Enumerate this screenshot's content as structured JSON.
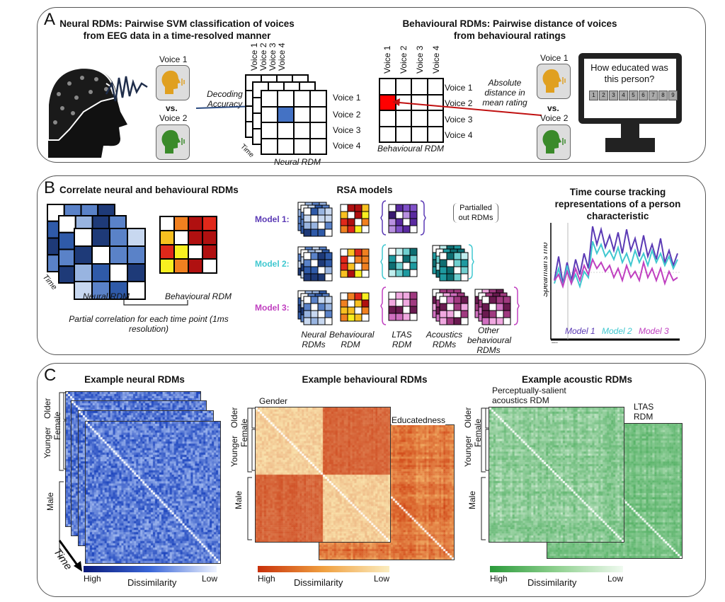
{
  "panelA": {
    "letter": "A",
    "neural_title": [
      "Neural RDMs: Pairwise SVM classification of voices",
      "from EEG data in a time-resolved manner"
    ],
    "behav_title": [
      "Behavioural RDMs: Pairwise distance of voices",
      "from behavioural ratings"
    ],
    "voice1": "Voice 1",
    "voice2": "Voice 2",
    "vs": "vs.",
    "decoding": "Decoding Accuracy",
    "voices": [
      "Voice 1",
      "Voice 2",
      "Voice 3",
      "Voice 4"
    ],
    "time": "Time",
    "neural_rdm": "Neural RDM",
    "behav_rdm": "Behavioural RDM",
    "absolute": "Absolute distance in mean rating",
    "question": "How educated was this person?",
    "scale": [
      "1",
      "2",
      "3",
      "4",
      "5",
      "6",
      "7",
      "8",
      "9"
    ],
    "colors": {
      "neural_cell": "#4472c4",
      "behav_cell": "#ff0000",
      "voice1_icon": "#e0a020",
      "voice2_icon": "#3a8a2a"
    }
  },
  "panelB": {
    "letter": "B",
    "title": "Correlate neural and behavioural RDMs",
    "neural_rdm": "Neural RDM",
    "behav_rdm": "Behavioural RDM",
    "time": "Time",
    "partial": "Partial correlation for each time point (1ms resolution)",
    "rsa_title": "RSA models",
    "models": [
      {
        "label": "Model 1:",
        "color": "#5b3ab5"
      },
      {
        "label": "Model 2:",
        "color": "#40c8d0"
      },
      {
        "label": "Model 3:",
        "color": "#c040c0"
      }
    ],
    "partialled": "Partialled out RDMs",
    "columns": [
      "Neural RDMs",
      "Behavioural RDM",
      "LTAS RDM",
      "Acoustics RDMs",
      "Other behavioural RDMs"
    ],
    "timecourse_title": "Time course tracking representations of a person characteristic",
    "ylabel": "Spearman's rho",
    "xlabel": "Time",
    "legend": [
      "Model 1",
      "Model 2",
      "Model 3"
    ]
  },
  "chart_data": {
    "type": "line",
    "title": "Time course tracking representations of a person characteristic",
    "xlabel": "Time",
    "ylabel": "Spearman's rho",
    "series": [
      {
        "name": "Model 1",
        "color": "#5b3ab5",
        "values": [
          0.1,
          0.5,
          0.05,
          0.4,
          0.1,
          0.45,
          0.2,
          0.55,
          0.3,
          1.0,
          0.7,
          0.95,
          0.65,
          0.85,
          0.6,
          0.9,
          0.55,
          0.95,
          0.6,
          0.8,
          0.5,
          0.85,
          0.5,
          0.7,
          0.45,
          0.8,
          0.4,
          0.6,
          0.35,
          0.55
        ]
      },
      {
        "name": "Model 2",
        "color": "#40c8d0",
        "values": [
          0.05,
          0.3,
          0.0,
          0.35,
          0.05,
          0.2,
          0.0,
          0.25,
          0.15,
          0.75,
          0.55,
          0.7,
          0.5,
          0.6,
          0.45,
          0.65,
          0.4,
          0.55,
          0.35,
          0.6,
          0.4,
          0.55,
          0.35,
          0.6,
          0.4,
          0.55,
          0.35,
          0.5,
          0.3,
          0.45
        ]
      },
      {
        "name": "Model 3",
        "color": "#c040c0",
        "values": [
          0.1,
          0.2,
          0.0,
          0.25,
          0.05,
          0.3,
          0.1,
          0.35,
          0.2,
          0.45,
          0.3,
          0.4,
          0.25,
          0.35,
          0.15,
          0.3,
          0.1,
          0.35,
          0.15,
          0.25,
          0.1,
          0.4,
          0.15,
          0.3,
          0.1,
          0.3,
          0.05,
          0.25,
          0.1,
          0.15
        ]
      }
    ]
  },
  "panelC": {
    "letter": "C",
    "neural_title": "Example neural RDMs",
    "behav_title": "Example behavioural RDMs",
    "acoustic_title": "Example acoustic RDMs",
    "groups": {
      "younger": "Younger",
      "older": "Older",
      "female": "Female",
      "male": "Male"
    },
    "time": "Time",
    "gender": "Gender",
    "educatedness": "Educatedness",
    "perceptual": "Perceptually-salient acoustics RDM",
    "ltas": "LTAS RDM",
    "high": "High",
    "low": "Low",
    "dissimilarity": "Dissimilarity",
    "colors": {
      "neural": "#2a50b8",
      "behav": "#d84a10",
      "acoustic": "#40a850"
    }
  }
}
